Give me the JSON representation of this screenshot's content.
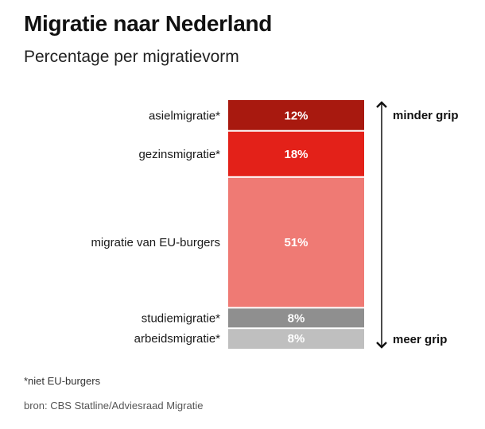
{
  "header": {
    "title": "Migratie naar Nederland",
    "subtitle": "Percentage per migratievorm"
  },
  "chart_data": {
    "type": "bar",
    "stacked": true,
    "title": "Migratie naar Nederland",
    "subtitle": "Percentage per migratievorm",
    "unit": "%",
    "categories": [
      "asielmigratie*",
      "gezinsmigratie*",
      "migratie van EU-burgers",
      "studiemigratie*",
      "arbeidsmigratie*"
    ],
    "values": [
      12,
      18,
      51,
      8,
      8
    ],
    "value_labels": [
      "12%",
      "18%",
      "51%",
      "8%",
      "8%"
    ],
    "colors": [
      "#a8190f",
      "#e32119",
      "#ef7a74",
      "#8f8f8f",
      "#bfbfbf"
    ],
    "scale_top_label": "minder grip",
    "scale_bottom_label": "meer grip"
  },
  "footer": {
    "footnote": "*niet EU-burgers",
    "source": "bron: CBS Statline/Adviesraad Migratie"
  }
}
